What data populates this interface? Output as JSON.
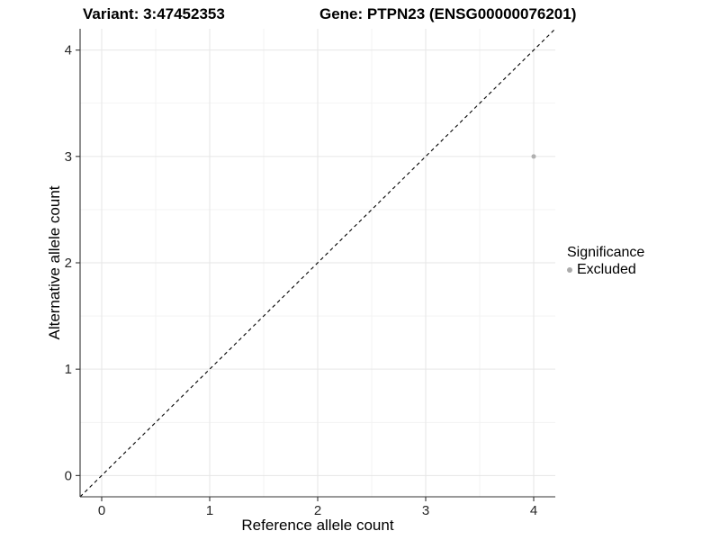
{
  "titles": {
    "variant": "Variant: 3:47452353",
    "gene": "Gene: PTPN23 (ENSG00000076201)"
  },
  "chart_data": {
    "type": "scatter",
    "xlabel": "Reference allele count",
    "ylabel": "Alternative allele count",
    "xlim": [
      -0.2,
      4.2
    ],
    "ylim": [
      -0.2,
      4.2
    ],
    "x_ticks": [
      0,
      1,
      2,
      3,
      4
    ],
    "y_ticks": [
      0,
      1,
      2,
      3,
      4
    ],
    "x_tick_labels": [
      "0",
      "1",
      "2",
      "3",
      "4"
    ],
    "y_tick_labels": [
      "0",
      "1",
      "2",
      "3",
      "4"
    ],
    "x_minor_ticks": [
      0.5,
      1.5,
      2.5,
      3.5
    ],
    "y_minor_ticks": [
      0.5,
      1.5,
      2.5,
      3.5
    ],
    "grid": true,
    "series": [
      {
        "name": "Excluded",
        "color": "#b0b0b0",
        "points": [
          {
            "x": 4,
            "y": 3
          }
        ]
      }
    ],
    "reference_line": {
      "type": "identity",
      "style": "dashed",
      "color": "#000000",
      "from": [
        -0.2,
        -0.2
      ],
      "to": [
        4.2,
        4.2
      ]
    },
    "legend": {
      "title": "Significance",
      "position": "right",
      "entries": [
        {
          "label": "Excluded",
          "color": "#ababab",
          "marker": "circle"
        }
      ]
    },
    "style": {
      "axis_color": "#333333",
      "major_grid_color": "#e6e6e6",
      "minor_grid_color": "#f2f2f2",
      "background": "#ffffff"
    }
  }
}
